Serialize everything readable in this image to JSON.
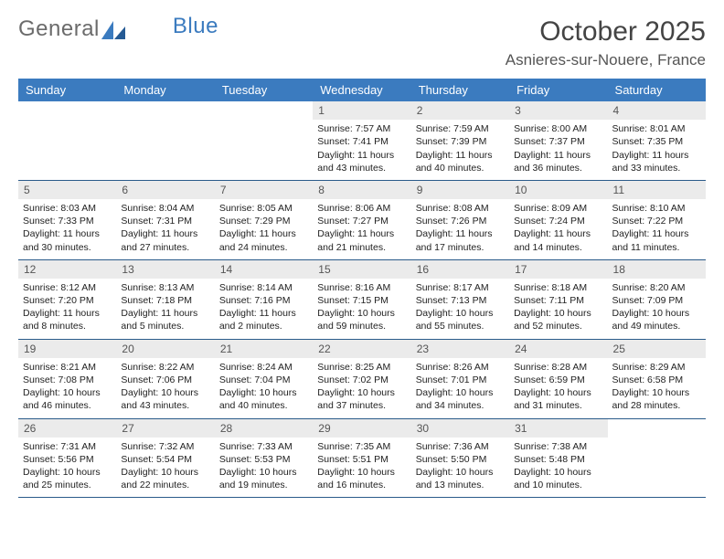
{
  "brand": {
    "part1": "General",
    "part2": "Blue"
  },
  "title": "October 2025",
  "location": "Asnieres-sur-Nouere, France",
  "colors": {
    "header_bg": "#3b7bbf",
    "header_fg": "#ffffff",
    "daynum_bg": "#ebebeb",
    "row_divider": "#2a5b8a"
  },
  "day_labels": [
    "Sunday",
    "Monday",
    "Tuesday",
    "Wednesday",
    "Thursday",
    "Friday",
    "Saturday"
  ],
  "weeks": [
    [
      {
        "n": "",
        "l1": "",
        "l2": "",
        "l3": "",
        "l4": "",
        "empty": true
      },
      {
        "n": "",
        "l1": "",
        "l2": "",
        "l3": "",
        "l4": "",
        "empty": true
      },
      {
        "n": "",
        "l1": "",
        "l2": "",
        "l3": "",
        "l4": "",
        "empty": true
      },
      {
        "n": "1",
        "l1": "Sunrise: 7:57 AM",
        "l2": "Sunset: 7:41 PM",
        "l3": "Daylight: 11 hours",
        "l4": "and 43 minutes."
      },
      {
        "n": "2",
        "l1": "Sunrise: 7:59 AM",
        "l2": "Sunset: 7:39 PM",
        "l3": "Daylight: 11 hours",
        "l4": "and 40 minutes."
      },
      {
        "n": "3",
        "l1": "Sunrise: 8:00 AM",
        "l2": "Sunset: 7:37 PM",
        "l3": "Daylight: 11 hours",
        "l4": "and 36 minutes."
      },
      {
        "n": "4",
        "l1": "Sunrise: 8:01 AM",
        "l2": "Sunset: 7:35 PM",
        "l3": "Daylight: 11 hours",
        "l4": "and 33 minutes."
      }
    ],
    [
      {
        "n": "5",
        "l1": "Sunrise: 8:03 AM",
        "l2": "Sunset: 7:33 PM",
        "l3": "Daylight: 11 hours",
        "l4": "and 30 minutes."
      },
      {
        "n": "6",
        "l1": "Sunrise: 8:04 AM",
        "l2": "Sunset: 7:31 PM",
        "l3": "Daylight: 11 hours",
        "l4": "and 27 minutes."
      },
      {
        "n": "7",
        "l1": "Sunrise: 8:05 AM",
        "l2": "Sunset: 7:29 PM",
        "l3": "Daylight: 11 hours",
        "l4": "and 24 minutes."
      },
      {
        "n": "8",
        "l1": "Sunrise: 8:06 AM",
        "l2": "Sunset: 7:27 PM",
        "l3": "Daylight: 11 hours",
        "l4": "and 21 minutes."
      },
      {
        "n": "9",
        "l1": "Sunrise: 8:08 AM",
        "l2": "Sunset: 7:26 PM",
        "l3": "Daylight: 11 hours",
        "l4": "and 17 minutes."
      },
      {
        "n": "10",
        "l1": "Sunrise: 8:09 AM",
        "l2": "Sunset: 7:24 PM",
        "l3": "Daylight: 11 hours",
        "l4": "and 14 minutes."
      },
      {
        "n": "11",
        "l1": "Sunrise: 8:10 AM",
        "l2": "Sunset: 7:22 PM",
        "l3": "Daylight: 11 hours",
        "l4": "and 11 minutes."
      }
    ],
    [
      {
        "n": "12",
        "l1": "Sunrise: 8:12 AM",
        "l2": "Sunset: 7:20 PM",
        "l3": "Daylight: 11 hours",
        "l4": "and 8 minutes."
      },
      {
        "n": "13",
        "l1": "Sunrise: 8:13 AM",
        "l2": "Sunset: 7:18 PM",
        "l3": "Daylight: 11 hours",
        "l4": "and 5 minutes."
      },
      {
        "n": "14",
        "l1": "Sunrise: 8:14 AM",
        "l2": "Sunset: 7:16 PM",
        "l3": "Daylight: 11 hours",
        "l4": "and 2 minutes."
      },
      {
        "n": "15",
        "l1": "Sunrise: 8:16 AM",
        "l2": "Sunset: 7:15 PM",
        "l3": "Daylight: 10 hours",
        "l4": "and 59 minutes."
      },
      {
        "n": "16",
        "l1": "Sunrise: 8:17 AM",
        "l2": "Sunset: 7:13 PM",
        "l3": "Daylight: 10 hours",
        "l4": "and 55 minutes."
      },
      {
        "n": "17",
        "l1": "Sunrise: 8:18 AM",
        "l2": "Sunset: 7:11 PM",
        "l3": "Daylight: 10 hours",
        "l4": "and 52 minutes."
      },
      {
        "n": "18",
        "l1": "Sunrise: 8:20 AM",
        "l2": "Sunset: 7:09 PM",
        "l3": "Daylight: 10 hours",
        "l4": "and 49 minutes."
      }
    ],
    [
      {
        "n": "19",
        "l1": "Sunrise: 8:21 AM",
        "l2": "Sunset: 7:08 PM",
        "l3": "Daylight: 10 hours",
        "l4": "and 46 minutes."
      },
      {
        "n": "20",
        "l1": "Sunrise: 8:22 AM",
        "l2": "Sunset: 7:06 PM",
        "l3": "Daylight: 10 hours",
        "l4": "and 43 minutes."
      },
      {
        "n": "21",
        "l1": "Sunrise: 8:24 AM",
        "l2": "Sunset: 7:04 PM",
        "l3": "Daylight: 10 hours",
        "l4": "and 40 minutes."
      },
      {
        "n": "22",
        "l1": "Sunrise: 8:25 AM",
        "l2": "Sunset: 7:02 PM",
        "l3": "Daylight: 10 hours",
        "l4": "and 37 minutes."
      },
      {
        "n": "23",
        "l1": "Sunrise: 8:26 AM",
        "l2": "Sunset: 7:01 PM",
        "l3": "Daylight: 10 hours",
        "l4": "and 34 minutes."
      },
      {
        "n": "24",
        "l1": "Sunrise: 8:28 AM",
        "l2": "Sunset: 6:59 PM",
        "l3": "Daylight: 10 hours",
        "l4": "and 31 minutes."
      },
      {
        "n": "25",
        "l1": "Sunrise: 8:29 AM",
        "l2": "Sunset: 6:58 PM",
        "l3": "Daylight: 10 hours",
        "l4": "and 28 minutes."
      }
    ],
    [
      {
        "n": "26",
        "l1": "Sunrise: 7:31 AM",
        "l2": "Sunset: 5:56 PM",
        "l3": "Daylight: 10 hours",
        "l4": "and 25 minutes."
      },
      {
        "n": "27",
        "l1": "Sunrise: 7:32 AM",
        "l2": "Sunset: 5:54 PM",
        "l3": "Daylight: 10 hours",
        "l4": "and 22 minutes."
      },
      {
        "n": "28",
        "l1": "Sunrise: 7:33 AM",
        "l2": "Sunset: 5:53 PM",
        "l3": "Daylight: 10 hours",
        "l4": "and 19 minutes."
      },
      {
        "n": "29",
        "l1": "Sunrise: 7:35 AM",
        "l2": "Sunset: 5:51 PM",
        "l3": "Daylight: 10 hours",
        "l4": "and 16 minutes."
      },
      {
        "n": "30",
        "l1": "Sunrise: 7:36 AM",
        "l2": "Sunset: 5:50 PM",
        "l3": "Daylight: 10 hours",
        "l4": "and 13 minutes."
      },
      {
        "n": "31",
        "l1": "Sunrise: 7:38 AM",
        "l2": "Sunset: 5:48 PM",
        "l3": "Daylight: 10 hours",
        "l4": "and 10 minutes."
      },
      {
        "n": "",
        "l1": "",
        "l2": "",
        "l3": "",
        "l4": "",
        "empty": true
      }
    ]
  ]
}
